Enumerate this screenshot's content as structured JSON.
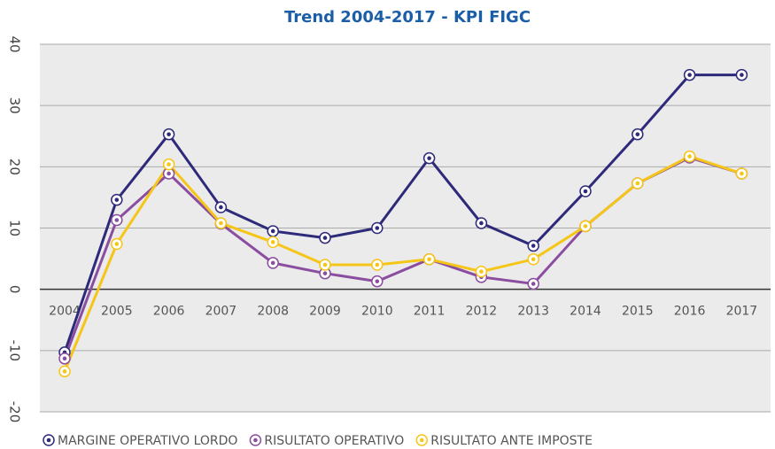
{
  "chart_data": {
    "type": "line",
    "title": "Trend 2004-2017 - KPI FIGC",
    "categories": [
      "2004",
      "2005",
      "2006",
      "2007",
      "2008",
      "2009",
      "2010",
      "2011",
      "2012",
      "2013",
      "2014",
      "2015",
      "2016",
      "2017"
    ],
    "series": [
      {
        "name": "MARGINE OPERATIVO LORDO",
        "color": "#2e2a7a",
        "values": [
          -10.3,
          14.6,
          25.3,
          13.4,
          9.5,
          8.4,
          10,
          21.4,
          10.8,
          7.1,
          16,
          25.3,
          35,
          35
        ]
      },
      {
        "name": "RISULTATO OPERATIVO",
        "color": "#8b4d9f",
        "values": [
          -11.3,
          11.3,
          18.9,
          10.7,
          4.3,
          2.6,
          1.3,
          4.9,
          2,
          0.9,
          10.3,
          17.3,
          21.5,
          18.9
        ]
      },
      {
        "name": "RISULTATO ANTE IMPOSTE",
        "color": "#f5c518",
        "values": [
          -13.4,
          7.4,
          20.4,
          10.8,
          7.7,
          4,
          4,
          4.9,
          2.9,
          4.9,
          10.3,
          17.3,
          21.7,
          18.9
        ]
      }
    ],
    "ylim": [
      -20,
      40
    ],
    "yticks": [
      -20,
      -10,
      0,
      10,
      20,
      30,
      40
    ],
    "grid": true
  }
}
